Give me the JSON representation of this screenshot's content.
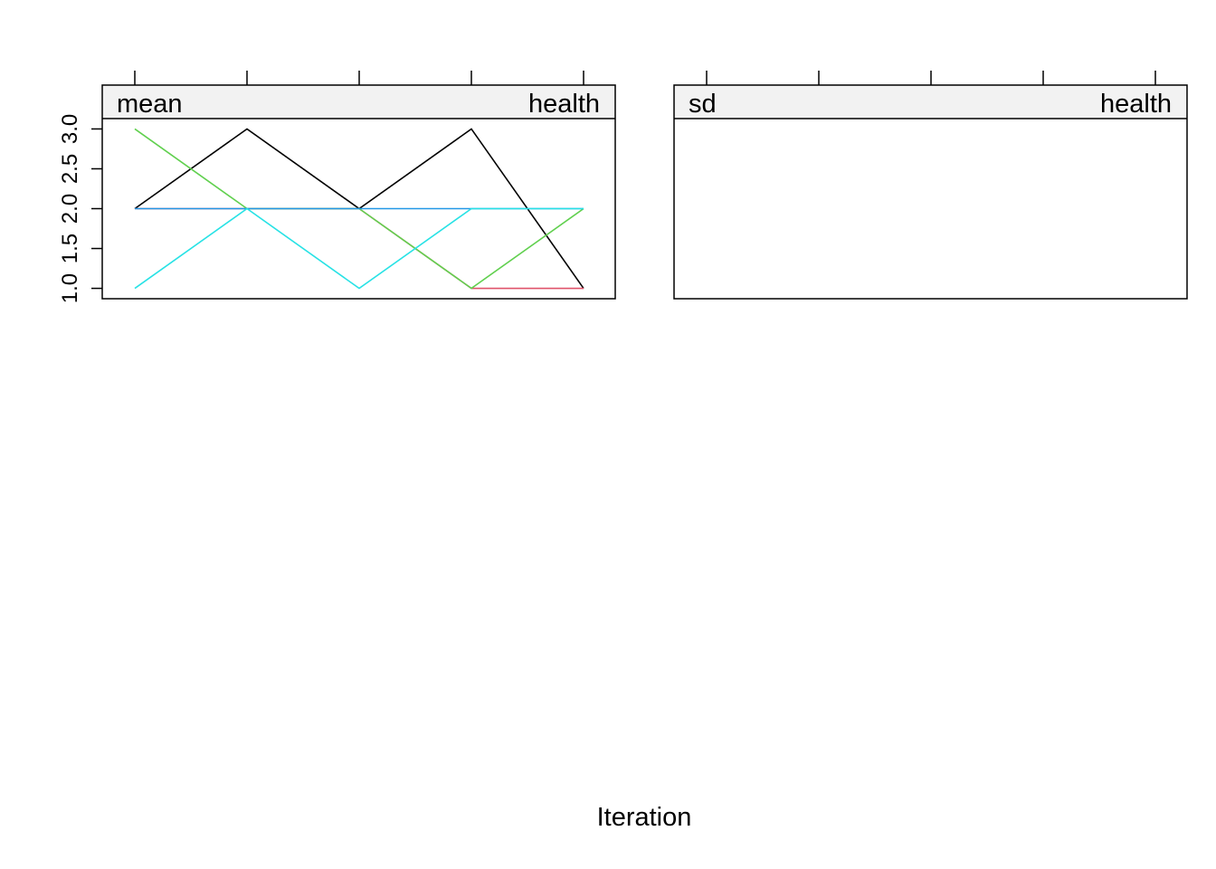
{
  "xlabel": "Iteration",
  "chart_data": [
    {
      "type": "line",
      "strip_left": "mean",
      "strip_right": "health",
      "x": [
        1,
        2,
        3,
        4,
        5
      ],
      "ylim": [
        0.87,
        3.13
      ],
      "yticks": [
        "1.0",
        "1.5",
        "2.0",
        "2.5",
        "3.0"
      ],
      "series": [
        {
          "color": "#000000",
          "values": [
            2,
            3,
            2,
            3,
            1
          ]
        },
        {
          "color": "#DF536B",
          "values": [
            2,
            2,
            2,
            1,
            1
          ]
        },
        {
          "color": "#61D04F",
          "values": [
            3,
            2,
            2,
            1,
            2
          ]
        },
        {
          "color": "#2297E6",
          "values": [
            2,
            2,
            2,
            2,
            2
          ]
        },
        {
          "color": "#28E2E5",
          "values": [
            1,
            2,
            1,
            2,
            2
          ]
        }
      ]
    },
    {
      "type": "line",
      "strip_left": "sd",
      "strip_right": "health",
      "x": [
        1,
        2,
        3,
        4,
        5
      ],
      "series": []
    }
  ]
}
